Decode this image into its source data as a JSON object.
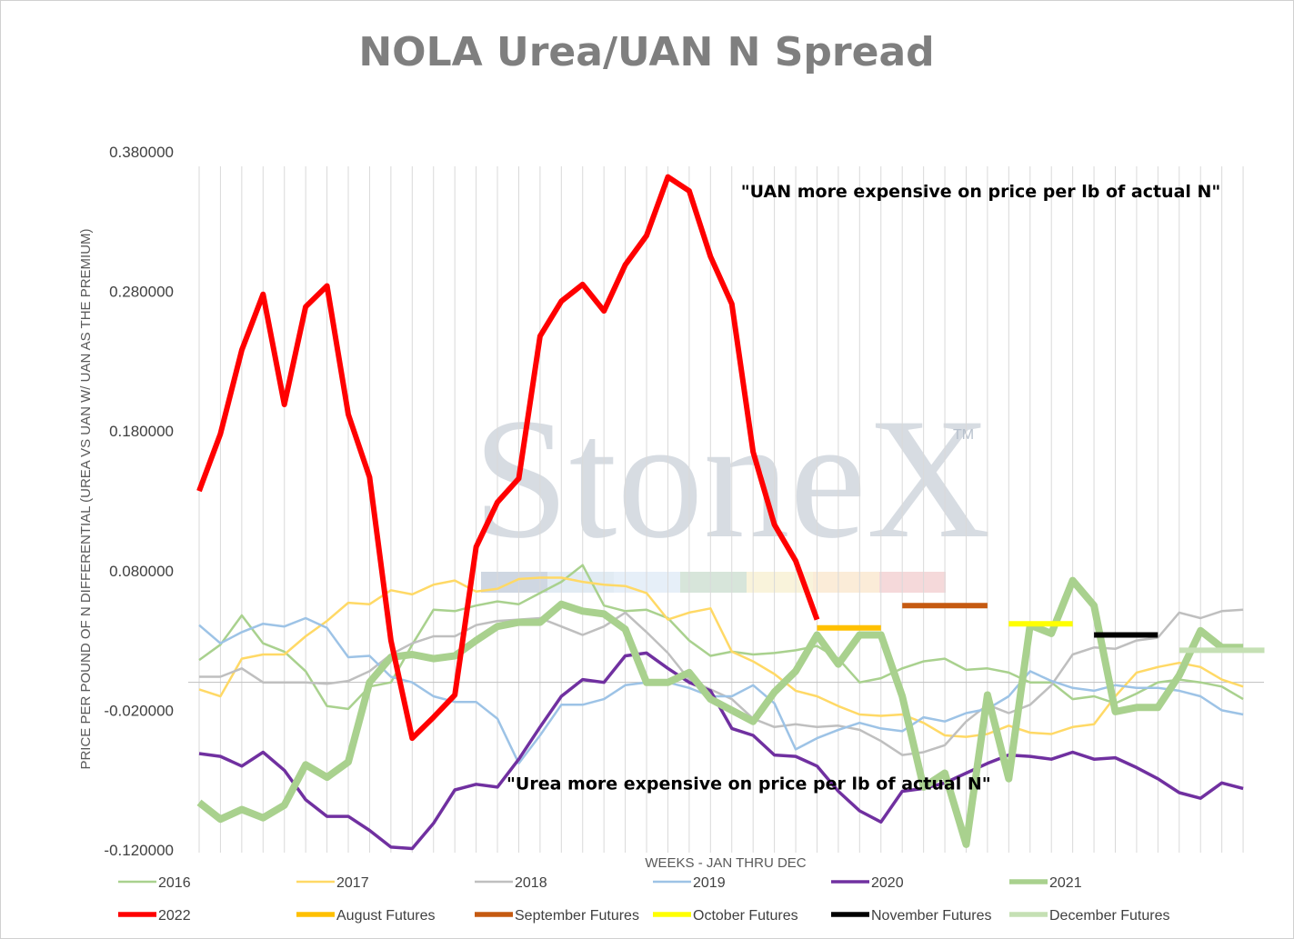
{
  "chart_data": {
    "type": "line",
    "title": "NOLA Urea/UAN N Spread",
    "xlabel": "WEEKS - JAN THRU DEC",
    "ylabel": "PRICE PER POUND OF N DIFFERENTIAL (UREA VS UAN W/ UAN AS THE PREMIUM)",
    "ylim": [
      -0.12,
      0.38
    ],
    "ytick_values": [
      -0.12,
      -0.02,
      0.08,
      0.18,
      0.28,
      0.38
    ],
    "ytick_labels": [
      "-0.120000",
      "-0.020000",
      "0.080000",
      "0.180000",
      "0.280000",
      "0.380000"
    ],
    "weeks": 50,
    "grid": "vertical weekly lines",
    "legend_position": "bottom",
    "watermark": "StoneX",
    "watermark_mark": "TM",
    "annotations": [
      {
        "text": "\"UAN more expensive on price per lb of actual N\"",
        "week": 25,
        "y": 0.352
      },
      {
        "text": "\"Urea more expensive on price per lb of actual N\"",
        "week": 14,
        "y": -0.072
      }
    ],
    "series": [
      {
        "name": "2016",
        "color": "#a9d18e",
        "width": 2.5,
        "start": 0,
        "values": [
          0.016,
          0.027,
          0.048,
          0.028,
          0.022,
          0.008,
          -0.017,
          -0.019,
          -0.003,
          0.0,
          0.027,
          0.052,
          0.051,
          0.055,
          0.058,
          0.056,
          0.064,
          0.072,
          0.084,
          0.055,
          0.051,
          0.052,
          0.046,
          0.03,
          0.019,
          0.022,
          0.02,
          0.021,
          0.023,
          0.026,
          0.017,
          0.0,
          0.003,
          0.01,
          0.015,
          0.017,
          0.009,
          0.01,
          0.007,
          0.0,
          0.0,
          -0.012,
          -0.01,
          -0.015,
          -0.008,
          0.0,
          0.002,
          0.0,
          -0.003,
          -0.012
        ]
      },
      {
        "name": "2017",
        "color": "#ffd966",
        "width": 2.5,
        "start": 0,
        "values": [
          -0.005,
          -0.01,
          0.017,
          0.02,
          0.02,
          0.033,
          0.044,
          0.057,
          0.056,
          0.066,
          0.063,
          0.07,
          0.073,
          0.065,
          0.067,
          0.074,
          0.075,
          0.075,
          0.072,
          0.07,
          0.069,
          0.064,
          0.045,
          0.05,
          0.053,
          0.022,
          0.015,
          0.006,
          -0.006,
          -0.01,
          -0.017,
          -0.023,
          -0.024,
          -0.023,
          -0.029,
          -0.038,
          -0.039,
          -0.037,
          -0.031,
          -0.036,
          -0.037,
          -0.032,
          -0.03,
          -0.01,
          0.007,
          0.011,
          0.014,
          0.011,
          0.002,
          -0.003
        ]
      },
      {
        "name": "2018",
        "color": "#bfbfbf",
        "width": 2.5,
        "start": 0,
        "values": [
          0.004,
          0.004,
          0.01,
          0.0,
          0.0,
          0.0,
          -0.001,
          0.001,
          0.008,
          0.02,
          0.028,
          0.033,
          0.033,
          0.041,
          0.044,
          0.045,
          0.046,
          0.04,
          0.034,
          0.04,
          0.05,
          0.036,
          0.021,
          0.002,
          -0.005,
          -0.012,
          -0.026,
          -0.032,
          -0.03,
          -0.032,
          -0.031,
          -0.034,
          -0.042,
          -0.052,
          -0.05,
          -0.045,
          -0.028,
          -0.016,
          -0.022,
          -0.016,
          -0.002,
          0.02,
          0.025,
          0.024,
          0.03,
          0.032,
          0.05,
          0.046,
          0.051,
          0.052
        ]
      },
      {
        "name": "2019",
        "color": "#9dc3e6",
        "width": 2.5,
        "start": 0,
        "values": [
          0.041,
          0.028,
          0.036,
          0.042,
          0.04,
          0.046,
          0.039,
          0.018,
          0.019,
          0.004,
          0.0,
          -0.01,
          -0.014,
          -0.014,
          -0.026,
          -0.058,
          -0.038,
          -0.016,
          -0.016,
          -0.012,
          -0.002,
          0.0,
          0.0,
          -0.004,
          -0.01,
          -0.01,
          -0.002,
          -0.015,
          -0.048,
          -0.04,
          -0.034,
          -0.029,
          -0.033,
          -0.035,
          -0.025,
          -0.028,
          -0.022,
          -0.019,
          -0.01,
          0.008,
          0.001,
          -0.004,
          -0.006,
          -0.002,
          -0.004,
          -0.004,
          -0.006,
          -0.01,
          -0.02,
          -0.023
        ]
      },
      {
        "name": "2020",
        "color": "#7030a0",
        "width": 3.5,
        "start": 0,
        "values": [
          -0.051,
          -0.053,
          -0.06,
          -0.05,
          -0.063,
          -0.084,
          -0.096,
          -0.096,
          -0.106,
          -0.118,
          -0.119,
          -0.101,
          -0.077,
          -0.073,
          -0.075,
          -0.055,
          -0.032,
          -0.01,
          0.002,
          0.0,
          0.019,
          0.021,
          0.01,
          0.0,
          -0.006,
          -0.033,
          -0.038,
          -0.052,
          -0.053,
          -0.06,
          -0.078,
          -0.092,
          -0.1,
          -0.078,
          -0.076,
          -0.072,
          -0.065,
          -0.058,
          -0.052,
          -0.053,
          -0.055,
          -0.05,
          -0.055,
          -0.054,
          -0.061,
          -0.069,
          -0.079,
          -0.083,
          -0.072,
          -0.076
        ]
      },
      {
        "name": "2021",
        "color": "#a9d18e",
        "width": 8,
        "start": 0,
        "values": [
          -0.086,
          -0.098,
          -0.091,
          -0.097,
          -0.088,
          -0.059,
          -0.068,
          -0.057,
          0.0,
          0.018,
          0.02,
          0.017,
          0.019,
          0.03,
          0.04,
          0.043,
          0.043,
          0.056,
          0.051,
          0.049,
          0.038,
          0.0,
          0.0,
          0.007,
          -0.012,
          -0.02,
          -0.028,
          -0.007,
          0.008,
          0.034,
          0.013,
          0.034,
          0.034,
          -0.01,
          -0.075,
          -0.065,
          -0.116,
          -0.009,
          -0.069,
          0.041,
          0.035,
          0.073,
          0.055,
          -0.021,
          -0.018,
          -0.018,
          0.005,
          0.037,
          0.025,
          0.025
        ]
      },
      {
        "name": "2022",
        "color": "#ff0000",
        "width": 6,
        "start": 0,
        "values": [
          0.137,
          0.178,
          0.238,
          0.278,
          0.199,
          0.269,
          0.284,
          0.192,
          0.147,
          0.03,
          -0.04,
          -0.025,
          -0.009,
          0.097,
          0.129,
          0.146,
          0.248,
          0.273,
          0.285,
          0.266,
          0.299,
          0.32,
          0.362,
          0.352,
          0.305,
          0.271,
          0.165,
          0.113,
          0.087,
          0.045
        ]
      },
      {
        "name": "August Futures",
        "color": "#ffc000",
        "width": 6,
        "start": 29,
        "values": [
          0.039,
          0.039,
          0.039,
          0.039
        ]
      },
      {
        "name": "September Futures",
        "color": "#c55a11",
        "width": 6,
        "start": 33,
        "values": [
          0.055,
          0.055,
          0.055,
          0.055,
          0.055
        ]
      },
      {
        "name": "October Futures",
        "color": "#ffff00",
        "width": 6,
        "start": 38,
        "values": [
          0.042,
          0.042,
          0.042,
          0.042
        ]
      },
      {
        "name": "November Futures",
        "color": "#000000",
        "width": 6,
        "start": 42,
        "values": [
          0.034,
          0.034,
          0.034,
          0.034
        ]
      },
      {
        "name": "December Futures",
        "color": "#c5e0b4",
        "width": 6,
        "start": 46,
        "values": [
          0.023,
          0.023,
          0.023,
          0.023,
          0.023
        ]
      }
    ]
  }
}
